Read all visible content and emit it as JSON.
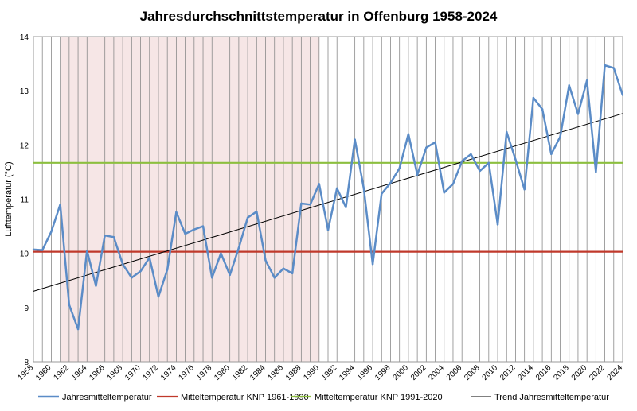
{
  "chart_data": {
    "type": "line",
    "title": "Jahresdurchschnittstemperatur in Offenburg 1958-2024",
    "xlabel": "",
    "ylabel": "Lufttemperatur (°C)",
    "xlim": [
      1958,
      2024
    ],
    "ylim": [
      8,
      14
    ],
    "y_ticks": [
      8,
      9,
      10,
      11,
      12,
      13,
      14
    ],
    "x_tick_labels": [
      "1958",
      "1960",
      "1962",
      "1964",
      "1966",
      "1968",
      "1970",
      "1972",
      "1974",
      "1976",
      "1978",
      "1980",
      "1982",
      "1984",
      "1986",
      "1988",
      "1990",
      "1992",
      "1994",
      "1996",
      "1998",
      "2000",
      "2002",
      "2004",
      "2006",
      "2008",
      "2010",
      "2012",
      "2014",
      "2016",
      "2018",
      "2020",
      "2022",
      "2024"
    ],
    "grid": "vertical lines per year",
    "shaded_period": [
      1961,
      1990
    ],
    "legend_position": "bottom",
    "x": [
      1958,
      1959,
      1960,
      1961,
      1962,
      1963,
      1964,
      1965,
      1966,
      1967,
      1968,
      1969,
      1970,
      1971,
      1972,
      1973,
      1974,
      1975,
      1976,
      1977,
      1978,
      1979,
      1980,
      1981,
      1982,
      1983,
      1984,
      1985,
      1986,
      1987,
      1988,
      1989,
      1990,
      1991,
      1992,
      1993,
      1994,
      1995,
      1996,
      1997,
      1998,
      1999,
      2000,
      2001,
      2002,
      2003,
      2004,
      2005,
      2006,
      2007,
      2008,
      2009,
      2010,
      2011,
      2012,
      2013,
      2014,
      2015,
      2016,
      2017,
      2018,
      2019,
      2020,
      2021,
      2022,
      2023,
      2024
    ],
    "series": [
      {
        "name": "Jahresmitteltemperatur",
        "color": "#5b8cc7",
        "values": [
          10.07,
          10.06,
          10.4,
          10.9,
          9.05,
          8.6,
          10.05,
          9.4,
          10.33,
          10.3,
          9.8,
          9.55,
          9.67,
          9.92,
          9.2,
          9.7,
          10.76,
          10.36,
          10.44,
          10.5,
          9.55,
          10.0,
          9.6,
          10.1,
          10.66,
          10.77,
          9.87,
          9.55,
          9.72,
          9.63,
          10.92,
          10.9,
          11.28,
          10.43,
          11.2,
          10.85,
          12.1,
          11.2,
          9.8,
          11.1,
          11.3,
          11.57,
          12.2,
          11.45,
          11.95,
          12.05,
          11.12,
          11.28,
          11.7,
          11.83,
          11.52,
          11.67,
          10.53,
          12.24,
          11.73,
          11.18,
          12.87,
          12.66,
          11.83,
          12.15,
          13.1,
          12.57,
          13.19,
          11.5,
          13.47,
          13.42,
          12.92
        ]
      },
      {
        "name": "Mitteltemperatur KNP 1961-1990",
        "color": "#c0392b",
        "constant": 10.03
      },
      {
        "name": "Mitteltemperatur KNP 1991-2020",
        "color": "#8cbf3f",
        "constant": 11.67
      },
      {
        "name": "Trend Jahresmitteltemperatur",
        "color": "#000000",
        "trend": {
          "start": 9.3,
          "end": 12.58
        }
      }
    ]
  }
}
